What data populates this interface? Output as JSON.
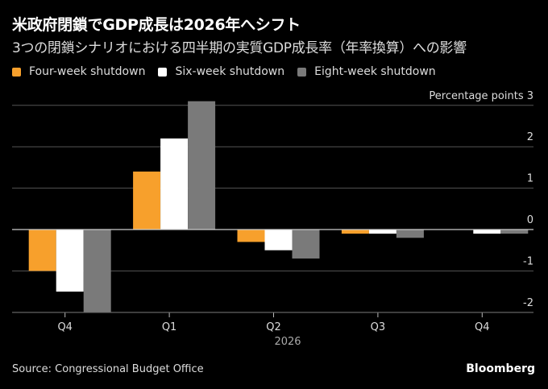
{
  "header": {
    "title": "米政府閉鎖でGDP成長は2026年へシフト",
    "subtitle": "3つの閉鎖シナリオにおける四半期の実質GDP成長率（年率換算）への影響"
  },
  "footer": {
    "source": "Source: Congressional Budget Office",
    "brand": "Bloomberg"
  },
  "chart_data": {
    "type": "bar",
    "title": "米政府閉鎖でGDP成長は2026年へシフト",
    "subtitle": "3つの閉鎖シナリオにおける四半期の実質GDP成長率（年率換算）への影響",
    "ylabel": "Percentage points",
    "xlabel": "",
    "categories": [
      "Q4",
      "Q1",
      "Q2",
      "Q3",
      "Q4"
    ],
    "year_label": "2026",
    "ylim": [
      -2,
      3
    ],
    "yticks": [
      3,
      2,
      1,
      0,
      -1,
      -2
    ],
    "grid": true,
    "legend_position": "top-left",
    "series": [
      {
        "name": "Four-week shutdown",
        "color": "#f7a02c",
        "values": [
          -1.0,
          1.4,
          -0.3,
          -0.1,
          0.0
        ]
      },
      {
        "name": "Six-week shutdown",
        "color": "#ffffff",
        "values": [
          -1.5,
          2.2,
          -0.5,
          -0.1,
          -0.1
        ]
      },
      {
        "name": "Eight-week shutdown",
        "color": "#7a7a7a",
        "values": [
          -2.0,
          3.1,
          -0.7,
          -0.2,
          -0.1
        ]
      }
    ]
  }
}
